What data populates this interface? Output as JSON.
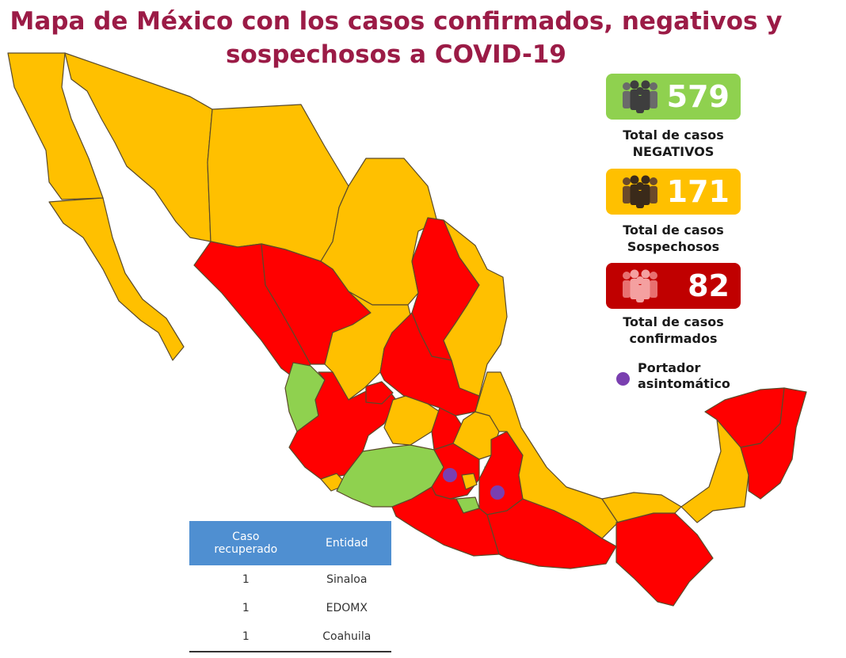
{
  "title": {
    "line1": "Mapa de México con los casos confirmados, negativos y",
    "line2": "sospechosos a COVID-19"
  },
  "colors": {
    "negativos": "#8fd14f",
    "sospechosos": "#ffc000",
    "confirmados": "#ff0000",
    "confirmados_card": "#c00000",
    "asintomatico": "#7a3fb0",
    "table_header": "#4f8fd1",
    "title": "#9b1b46"
  },
  "stats": {
    "negativos": {
      "value": "579",
      "label_line1": "Total de casos",
      "label_line2": "NEGATIVOS",
      "icon": "people-group-icon"
    },
    "sospechosos": {
      "value": "171",
      "label_line1": "Total de casos",
      "label_line2": "Sospechosos",
      "icon": "people-group-icon"
    },
    "confirmados": {
      "value": "82",
      "label_line1": "Total de casos",
      "label_line2": "confirmados",
      "icon": "people-group-icon"
    }
  },
  "legend": {
    "line1": "Portador",
    "line2": "asintomático"
  },
  "table": {
    "headers": {
      "caso_line1": "Caso",
      "caso_line2": "recuperado",
      "entidad": "Entidad"
    },
    "rows": [
      {
        "caso": "1",
        "entidad": "Sinaloa"
      },
      {
        "caso": "1",
        "entidad": "EDOMX"
      },
      {
        "caso": "1",
        "entidad": "Coahuila"
      }
    ]
  },
  "map_states": [
    {
      "name": "Baja California",
      "status": "sospechosos"
    },
    {
      "name": "Baja California Sur",
      "status": "sospechosos"
    },
    {
      "name": "Sonora",
      "status": "sospechosos"
    },
    {
      "name": "Chihuahua",
      "status": "sospechosos"
    },
    {
      "name": "Coahuila",
      "status": "sospechosos"
    },
    {
      "name": "Nuevo León",
      "status": "confirmados"
    },
    {
      "name": "Tamaulipas",
      "status": "sospechosos"
    },
    {
      "name": "Sinaloa",
      "status": "confirmados"
    },
    {
      "name": "Durango",
      "status": "confirmados"
    },
    {
      "name": "Zacatecas",
      "status": "sospechosos"
    },
    {
      "name": "San Luis Potosí",
      "status": "confirmados"
    },
    {
      "name": "Nayarit",
      "status": "negativos"
    },
    {
      "name": "Jalisco",
      "status": "confirmados"
    },
    {
      "name": "Aguascalientes",
      "status": "confirmados"
    },
    {
      "name": "Guanajuato",
      "status": "sospechosos"
    },
    {
      "name": "Querétaro",
      "status": "confirmados"
    },
    {
      "name": "Hidalgo",
      "status": "sospechosos"
    },
    {
      "name": "Colima",
      "status": "sospechosos"
    },
    {
      "name": "Michoacán",
      "status": "negativos"
    },
    {
      "name": "Estado de México",
      "status": "confirmados"
    },
    {
      "name": "Ciudad de México",
      "status": "sospechosos"
    },
    {
      "name": "Morelos",
      "status": "negativos"
    },
    {
      "name": "Tlaxcala",
      "status": "negativos"
    },
    {
      "name": "Puebla",
      "status": "confirmados"
    },
    {
      "name": "Veracruz",
      "status": "sospechosos"
    },
    {
      "name": "Guerrero",
      "status": "confirmados"
    },
    {
      "name": "Oaxaca",
      "status": "confirmados"
    },
    {
      "name": "Chiapas",
      "status": "confirmados"
    },
    {
      "name": "Tabasco",
      "status": "sospechosos"
    },
    {
      "name": "Campeche",
      "status": "sospechosos"
    },
    {
      "name": "Yucatán",
      "status": "confirmados"
    },
    {
      "name": "Quintana Roo",
      "status": "confirmados"
    }
  ],
  "asintomatico_states": [
    "Estado de México",
    "Puebla"
  ]
}
